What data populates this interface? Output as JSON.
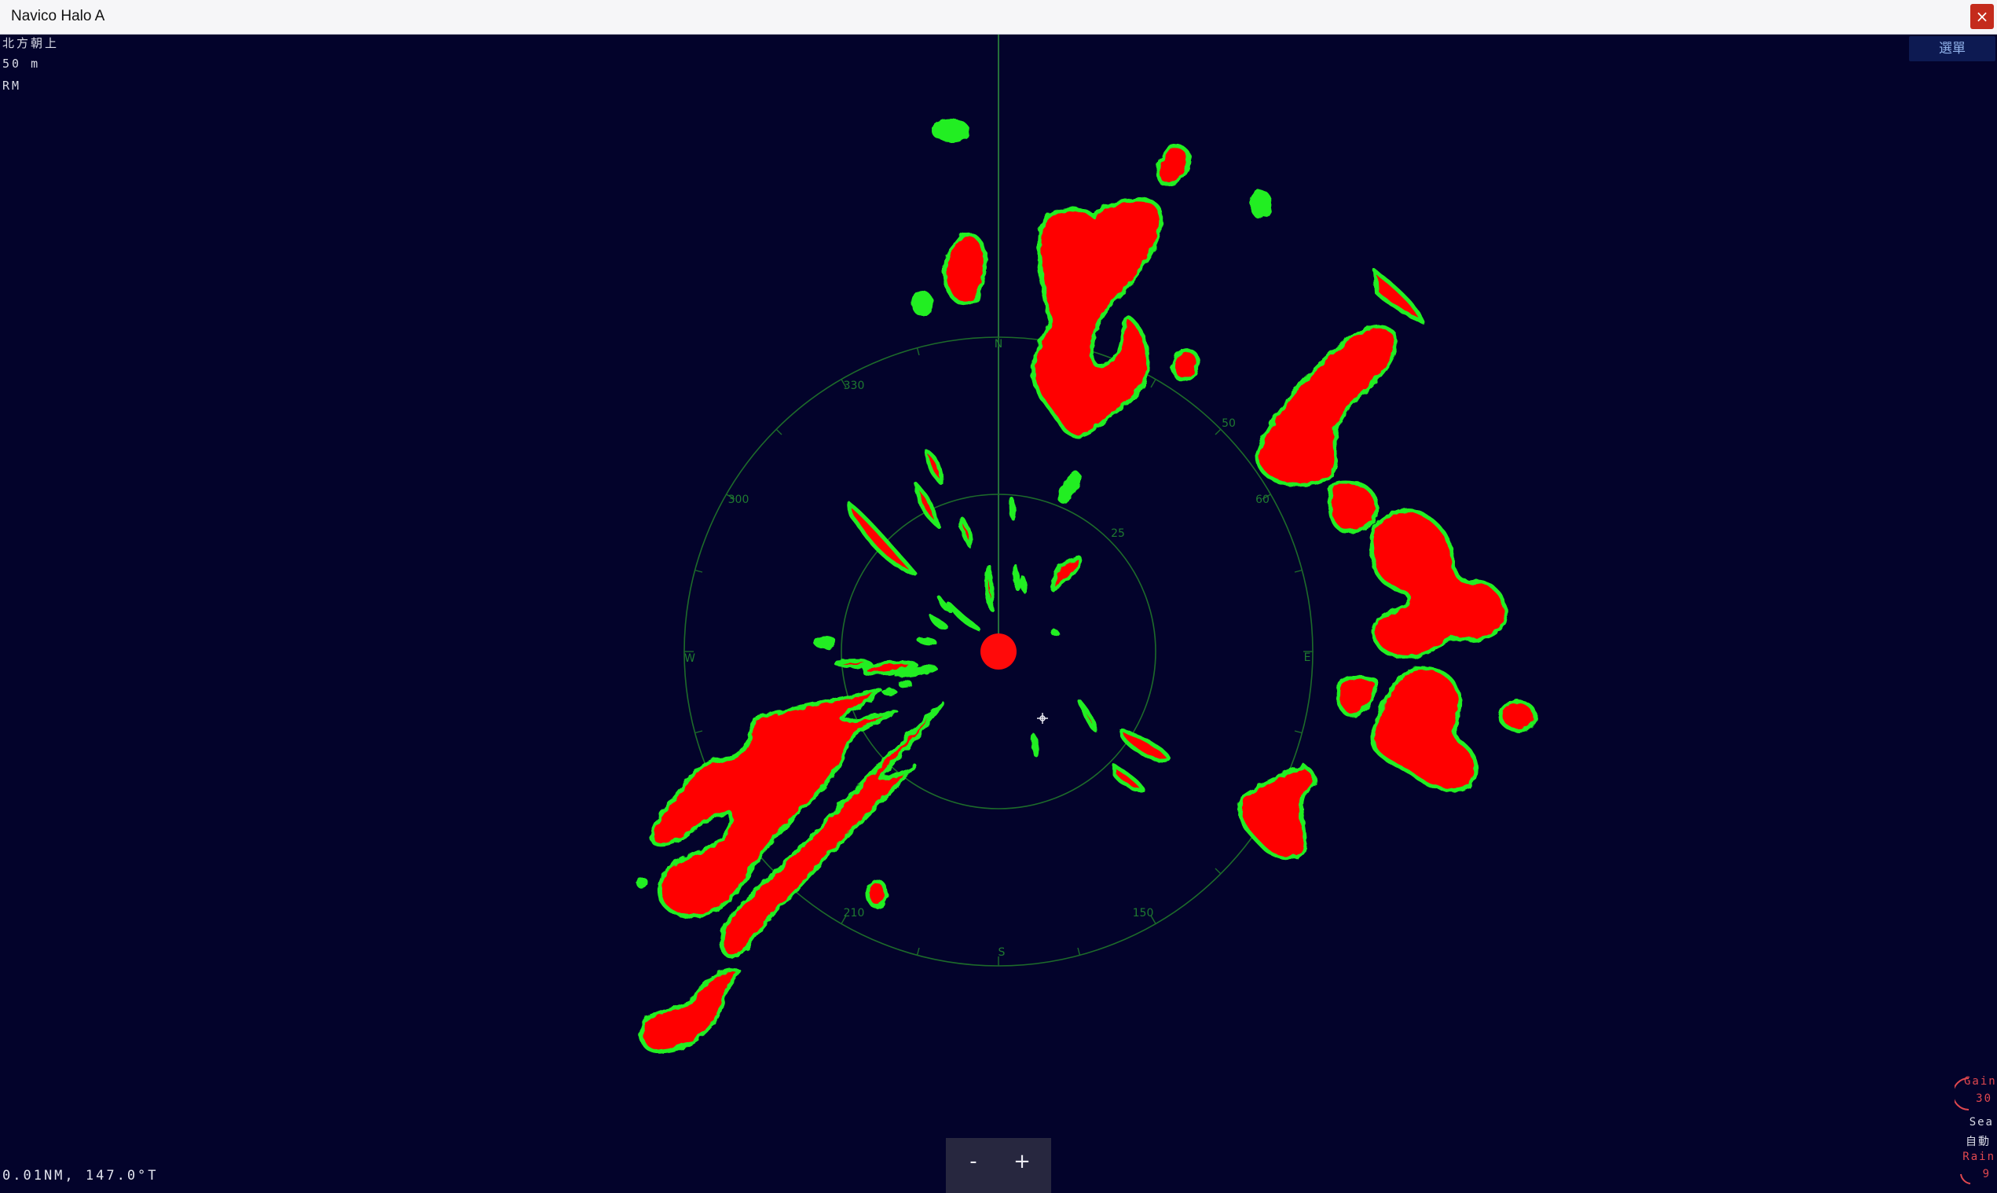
{
  "window": {
    "title": "Navico Halo A",
    "close_glyph": "×",
    "close_icon": "close-icon"
  },
  "hud": {
    "orientation": "北方朝上",
    "range": "50 m",
    "motion": "RM"
  },
  "menu_button": {
    "label": "選單"
  },
  "radar": {
    "bearing_labels": {
      "n": "N",
      "s": "S",
      "e": "E",
      "w": "W",
      "b330": "330",
      "b300": "300",
      "b210": "210",
      "b150": "150",
      "b60": "60",
      "b50": "50",
      "b25": "25"
    },
    "colors": {
      "background": "#03032b",
      "ring": "#1d6b2a",
      "heading_line": "#2f8b3e",
      "echo_strong": "#ff0000",
      "echo_weak": "#22ee22",
      "own_ship": "#ff0a0a"
    },
    "cursor_icon": "crosshair-icon"
  },
  "zoom": {
    "minus": "-",
    "plus": "+"
  },
  "cursor_readout": "0.01NM, 147.0°T",
  "controls": {
    "gain_label": "Gain",
    "gain_value": "30",
    "sea_label": "Sea",
    "sea_value": "自動",
    "rain_label": "Rain",
    "rain_value": "9",
    "gain_color": "#e0484f",
    "sea_color": "#d9dbe6",
    "rain_color": "#e0484f",
    "gain_icon": "gain-dial-icon",
    "rain_icon": "rain-dial-icon"
  }
}
